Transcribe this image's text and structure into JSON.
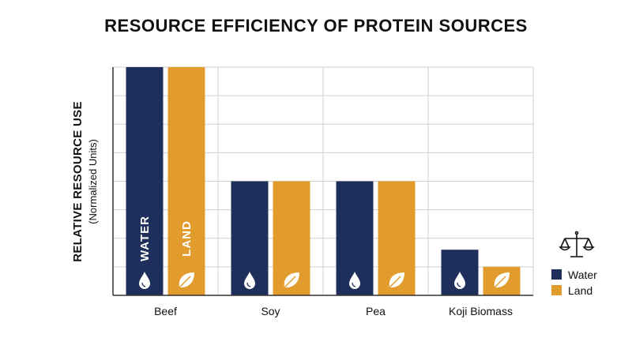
{
  "chart_data": {
    "type": "bar",
    "title": "RESOURCE EFFICIENCY OF PROTEIN SOURCES",
    "ylabel": "RELATIVE RESOURCE USE",
    "ylabel_sub": "(Normalized Units)",
    "xlabel": "",
    "categories": [
      "Beef",
      "Soy",
      "Pea",
      "Koji Biomass"
    ],
    "series": [
      {
        "name": "Water",
        "values": [
          8,
          4,
          4,
          1.6
        ],
        "bar_label": "WATER",
        "icon": "water-drop-icon"
      },
      {
        "name": "Land",
        "values": [
          8,
          4,
          4,
          1
        ],
        "bar_label": "LAND",
        "icon": "leaf-icon"
      }
    ],
    "ylim": [
      0,
      8
    ],
    "grid": true,
    "legend": {
      "position": "bottom-right",
      "icon": "scale-icon"
    },
    "colors": {
      "Water": "#1f2f5c",
      "Land": "#e29c2d",
      "grid": "#d0d0d0",
      "axis": "#333333"
    }
  }
}
